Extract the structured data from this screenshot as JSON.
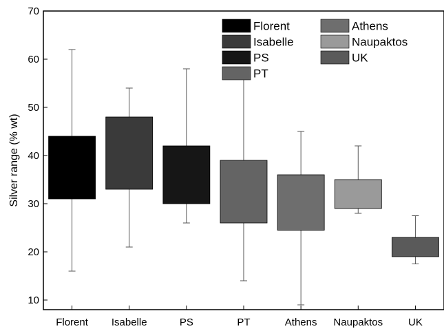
{
  "chart_data": {
    "type": "box",
    "title": "",
    "xlabel": "",
    "ylabel": "Silver range (% wt)",
    "ylim": [
      8,
      70
    ],
    "yticks": [
      10,
      20,
      30,
      40,
      50,
      60,
      70
    ],
    "grid": false,
    "legend_position": "top-right",
    "categories": [
      "Florent",
      "Isabelle",
      "PS",
      "PT",
      "Athens",
      "Naupaktos",
      "UK"
    ],
    "series": [
      {
        "name": "Florent",
        "color": "#000000",
        "whisker_low": 16,
        "q1": 31,
        "q3": 44,
        "whisker_high": 62
      },
      {
        "name": "Isabelle",
        "color": "#3a3a3a",
        "whisker_low": 21,
        "q1": 33,
        "q3": 48,
        "whisker_high": 54
      },
      {
        "name": "PS",
        "color": "#161616",
        "whisker_low": 26,
        "q1": 30,
        "q3": 42,
        "whisker_high": 58
      },
      {
        "name": "PT",
        "color": "#646464",
        "whisker_low": 14,
        "q1": 26,
        "q3": 39,
        "whisker_high": 58
      },
      {
        "name": "Athens",
        "color": "#6e6e6e",
        "whisker_low": 9,
        "q1": 24.5,
        "q3": 36,
        "whisker_high": 45
      },
      {
        "name": "Naupaktos",
        "color": "#9a9a9a",
        "whisker_low": 28,
        "q1": 29,
        "q3": 35,
        "whisker_high": 42
      },
      {
        "name": "UK",
        "color": "#5a5a5a",
        "whisker_low": 17.5,
        "q1": 19,
        "q3": 23,
        "whisker_high": 27.5
      }
    ]
  }
}
